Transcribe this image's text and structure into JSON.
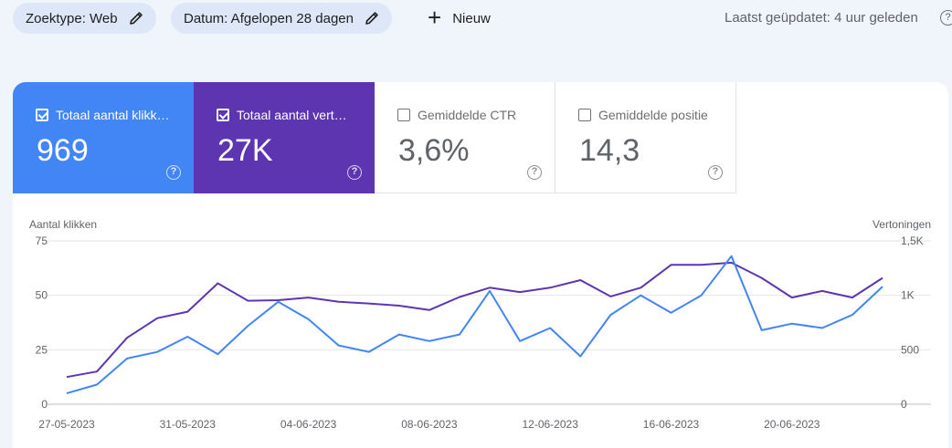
{
  "filters": {
    "search_type": "Zoektype: Web",
    "date": "Datum: Afgelopen 28 dagen",
    "new_label": "Nieuw"
  },
  "last_updated": "Laatst geüpdatet: 4 uur geleden",
  "metrics": [
    {
      "label": "Totaal aantal klikk…",
      "value": "969",
      "checked": true,
      "color": "#4285f4"
    },
    {
      "label": "Totaal aantal vert…",
      "value": "27K",
      "checked": true,
      "color": "#5e35b1"
    },
    {
      "label": "Gemiddelde CTR",
      "value": "3,6%",
      "checked": false
    },
    {
      "label": "Gemiddelde positie",
      "value": "14,3",
      "checked": false
    }
  ],
  "chart_data": {
    "type": "line",
    "left_axis_label": "Aantal klikken",
    "right_axis_label": "Vertoningen",
    "left_ticks": [
      "0",
      "25",
      "50",
      "75"
    ],
    "right_ticks": [
      "0",
      "500",
      "1K",
      "1,5K"
    ],
    "left_ylim": [
      0,
      75
    ],
    "right_ylim": [
      0,
      1500
    ],
    "x_tick_labels": [
      "27-05-2023",
      "31-05-2023",
      "04-06-2023",
      "08-06-2023",
      "12-06-2023",
      "16-06-2023",
      "20-06-2023"
    ],
    "x": [
      "27-05-2023",
      "28-05-2023",
      "29-05-2023",
      "30-05-2023",
      "31-05-2023",
      "01-06-2023",
      "02-06-2023",
      "03-06-2023",
      "04-06-2023",
      "05-06-2023",
      "06-06-2023",
      "07-06-2023",
      "08-06-2023",
      "09-06-2023",
      "10-06-2023",
      "11-06-2023",
      "12-06-2023",
      "13-06-2023",
      "14-06-2023",
      "15-06-2023",
      "16-06-2023",
      "17-06-2023",
      "18-06-2023",
      "19-06-2023",
      "20-06-2023",
      "21-06-2023",
      "22-06-2023",
      "23-06-2023"
    ],
    "series": [
      {
        "name": "Totaal aantal klikken",
        "axis": "left",
        "color": "#4285f4",
        "values": [
          5,
          9,
          21,
          24,
          31,
          23,
          36,
          47,
          39,
          27,
          24,
          32,
          29,
          32,
          52,
          29,
          35,
          22,
          41,
          50,
          42,
          50,
          68,
          34,
          37,
          35,
          41,
          54
        ]
      },
      {
        "name": "Totaal aantal vertoningen",
        "axis": "right",
        "color": "#5e35b1",
        "values": [
          250,
          300,
          610,
          790,
          850,
          1110,
          950,
          955,
          980,
          940,
          925,
          905,
          865,
          985,
          1070,
          1030,
          1070,
          1140,
          990,
          1070,
          1280,
          1280,
          1300,
          1160,
          980,
          1040,
          980,
          1160
        ]
      }
    ],
    "grid": true
  }
}
